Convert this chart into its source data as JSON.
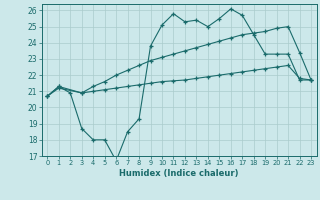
{
  "xlabel": "Humidex (Indice chaleur)",
  "bg_color": "#cce8ea",
  "grid_color": "#aacccc",
  "line_color": "#1a6b6b",
  "xlim": [
    -0.5,
    23.5
  ],
  "ylim": [
    17,
    26.4
  ],
  "yticks": [
    17,
    18,
    19,
    20,
    21,
    22,
    23,
    24,
    25,
    26
  ],
  "xticks": [
    0,
    1,
    2,
    3,
    4,
    5,
    6,
    7,
    8,
    9,
    10,
    11,
    12,
    13,
    14,
    15,
    16,
    17,
    18,
    19,
    20,
    21,
    22,
    23
  ],
  "line1_x": [
    0,
    1,
    2,
    3,
    4,
    5,
    6,
    7,
    8,
    9,
    10,
    11,
    12,
    13,
    14,
    15,
    16,
    17,
    18,
    19,
    20,
    21,
    22,
    23
  ],
  "line1_y": [
    20.7,
    21.3,
    20.9,
    18.7,
    18.0,
    18.0,
    16.7,
    18.5,
    19.3,
    23.8,
    25.1,
    25.8,
    25.3,
    25.4,
    25.0,
    25.5,
    26.1,
    25.7,
    24.5,
    23.3,
    23.3,
    23.3,
    21.7,
    21.7
  ],
  "line2_x": [
    0,
    1,
    3,
    4,
    5,
    6,
    7,
    8,
    9,
    10,
    11,
    12,
    13,
    14,
    15,
    16,
    17,
    18,
    19,
    20,
    21,
    22,
    23
  ],
  "line2_y": [
    20.7,
    21.3,
    20.9,
    21.3,
    21.6,
    22.0,
    22.3,
    22.6,
    22.9,
    23.1,
    23.3,
    23.5,
    23.7,
    23.9,
    24.1,
    24.3,
    24.5,
    24.6,
    24.7,
    24.9,
    25.0,
    23.4,
    21.7
  ],
  "line3_x": [
    0,
    1,
    3,
    4,
    5,
    6,
    7,
    8,
    9,
    10,
    11,
    12,
    13,
    14,
    15,
    16,
    17,
    18,
    19,
    20,
    21,
    22,
    23
  ],
  "line3_y": [
    20.7,
    21.2,
    20.9,
    21.0,
    21.1,
    21.2,
    21.3,
    21.4,
    21.5,
    21.6,
    21.65,
    21.7,
    21.8,
    21.9,
    22.0,
    22.1,
    22.2,
    22.3,
    22.4,
    22.5,
    22.6,
    21.8,
    21.7
  ]
}
